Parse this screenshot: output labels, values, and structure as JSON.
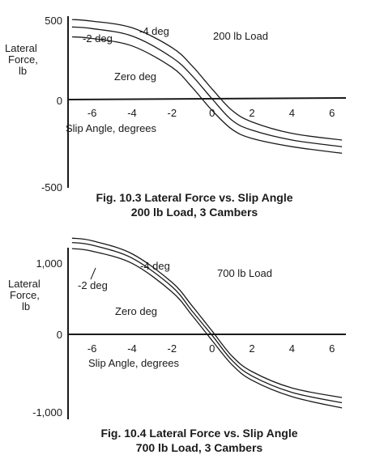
{
  "chart_data": [
    {
      "type": "line",
      "caption_line1": "Fig. 10.3 Lateral Force vs. Slip Angle",
      "caption_line2": "200 lb Load, 3 Cambers",
      "ylabel_line1": "Lateral",
      "ylabel_line2": "Force,",
      "ylabel_line3": "lb",
      "xlabel": "Slip Angle, degrees",
      "load_label": "200 lb Load",
      "xlim": [
        -7.2,
        6.7
      ],
      "ylim": [
        -500,
        500
      ],
      "x_ticks": [
        -6,
        -4,
        -2,
        0,
        2,
        4,
        6
      ],
      "y_ticks": [
        500,
        0,
        -500
      ],
      "y_tick_labels": [
        "500",
        "0",
        "-500"
      ],
      "series": [
        {
          "name": "-4 deg",
          "x": [
            -7,
            -6,
            -4,
            -2,
            -1,
            0,
            1,
            2,
            4,
            6.5
          ],
          "y": [
            480,
            470,
            430,
            310,
            200,
            60,
            -70,
            -140,
            -210,
            -250
          ]
        },
        {
          "name": "-2 deg",
          "x": [
            -7,
            -6,
            -4,
            -2,
            -1,
            0,
            1,
            2,
            4,
            6.5
          ],
          "y": [
            435,
            425,
            380,
            250,
            140,
            0,
            -130,
            -190,
            -250,
            -290
          ]
        },
        {
          "name": "Zero deg",
          "x": [
            -7,
            -6,
            -4,
            -2,
            -1,
            0,
            1,
            2,
            4,
            6.5
          ],
          "y": [
            375,
            365,
            320,
            190,
            70,
            -70,
            -185,
            -240,
            -290,
            -330
          ]
        }
      ]
    },
    {
      "type": "line",
      "caption_line1": "Fig. 10.4 Lateral Force vs. Slip Angle",
      "caption_line2": "700 lb Load, 3 Cambers",
      "ylabel_line1": "Lateral",
      "ylabel_line2": "Force,",
      "ylabel_line3": "lb",
      "xlabel": "Slip Angle, degrees",
      "load_label": "700 lb Load",
      "xlim": [
        -7.2,
        6.7
      ],
      "ylim": [
        -1000,
        1000
      ],
      "x_ticks": [
        -6,
        -4,
        -2,
        0,
        2,
        4,
        6
      ],
      "y_ticks": [
        1000,
        0,
        -1000
      ],
      "y_tick_labels": [
        "1,000",
        "0",
        "-1,000"
      ],
      "series": [
        {
          "name": "-4 deg",
          "x": [
            -7,
            -6,
            -4,
            -2,
            -1,
            0,
            1,
            2,
            4,
            6.5
          ],
          "y": [
            1110,
            1080,
            930,
            600,
            330,
            40,
            -250,
            -430,
            -620,
            -730
          ]
        },
        {
          "name": "-2 deg",
          "x": [
            -7,
            -6,
            -4,
            -2,
            -1,
            0,
            1,
            2,
            4,
            6.5
          ],
          "y": [
            1060,
            1030,
            880,
            550,
            270,
            -10,
            -300,
            -480,
            -670,
            -790
          ]
        },
        {
          "name": "Zero deg",
          "x": [
            -7,
            -6,
            -4,
            -2,
            -1,
            0,
            1,
            2,
            4,
            6.5
          ],
          "y": [
            990,
            960,
            820,
            490,
            220,
            -70,
            -350,
            -530,
            -720,
            -850
          ]
        }
      ]
    }
  ]
}
